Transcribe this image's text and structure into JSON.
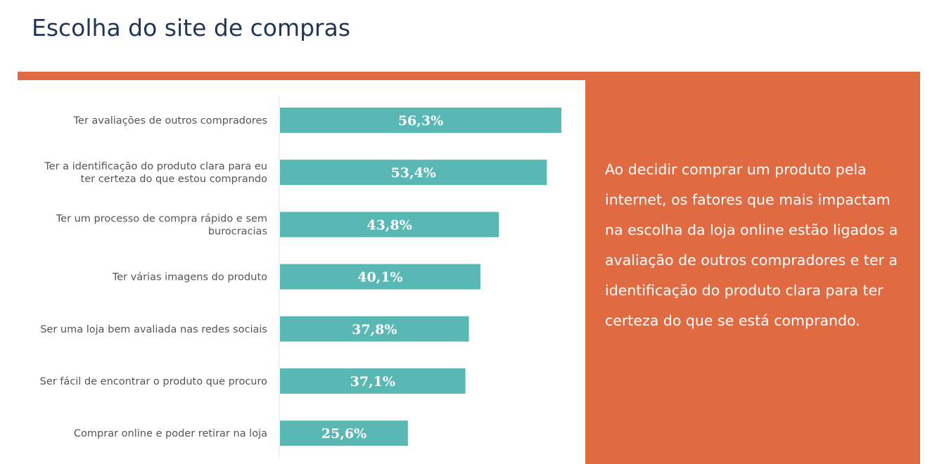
{
  "page": {
    "title": "Escolha do site de compras",
    "accent_color": "#e06a42",
    "bar_color": "#5ab8b4",
    "title_color": "#1f3658"
  },
  "chart_data": {
    "type": "bar",
    "orientation": "horizontal",
    "categories": [
      [
        "Ter avaliações de outros compradores"
      ],
      [
        "Ter a identificação do produto clara para eu",
        "ter certeza do que estou comprando"
      ],
      [
        "Ter um processo de compra rápido e sem",
        "burocracias"
      ],
      [
        "Ter várias imagens do produto"
      ],
      [
        "Ser uma loja bem avaliada nas redes sociais"
      ],
      [
        "Ser fácil de encontrar o produto que procuro"
      ],
      [
        "Comprar online e poder retirar na loja"
      ]
    ],
    "values": [
      56.3,
      53.4,
      43.8,
      40.1,
      37.8,
      37.1,
      25.6
    ],
    "value_labels": [
      "56,3%",
      "53,4%",
      "43,8%",
      "40,1%",
      "37,8%",
      "37,1%",
      "25,6%"
    ],
    "xlim": [
      0,
      56.3
    ],
    "grid": false,
    "legend": "none"
  },
  "panel": {
    "text": "Ao decidir comprar um produto pela internet, os fatores que mais impactam na escolha da loja online estão ligados a avaliação de outros compradores e ter a identificação do produto clara para ter certeza do que se está comprando."
  }
}
